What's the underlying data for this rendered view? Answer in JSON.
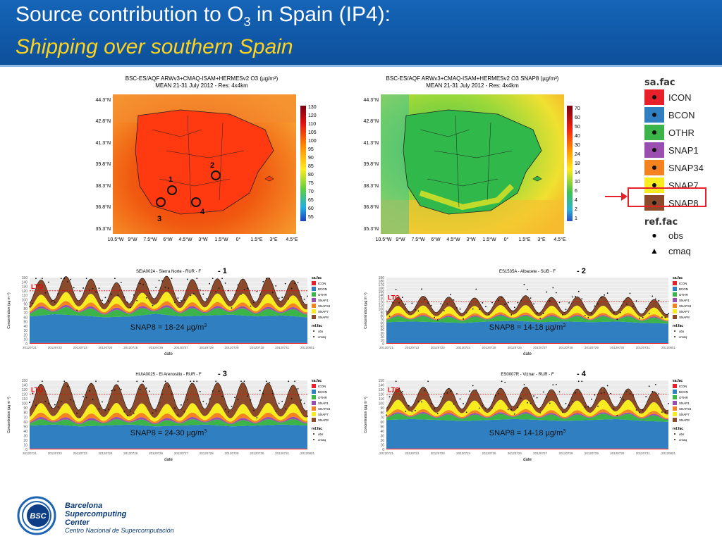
{
  "header": {
    "title_main": "Source contribution to O",
    "title_sub": "3",
    "title_tail": " in Spain (IP4):",
    "subtitle": "Shipping over southern Spain"
  },
  "map_left": {
    "title_line1": "BSC-ES/AQF ARWv3+CMAQ-ISAM+HERMESv2 O3 (µg/m³)",
    "title_line2": "MEAN 21-31 July 2012 - Res: 4x4km",
    "lat_labels": [
      "44.3°N",
      "42.8°N",
      "41.3°N",
      "39.8°N",
      "38.3°N",
      "36.8°N",
      "35.3°N"
    ],
    "lon_labels": [
      "10.5°W",
      "9°W",
      "7.5°W",
      "6°W",
      "4.5°W",
      "3°W",
      "1.5°W",
      "0°",
      "1.5°E",
      "3°E",
      "4.5°E"
    ],
    "scale": [
      "130",
      "120",
      "110",
      "105",
      "100",
      "95",
      "90",
      "85",
      "80",
      "75",
      "70",
      "65",
      "60",
      "55"
    ],
    "site_numbers": [
      "1",
      "2",
      "3",
      "4"
    ]
  },
  "map_right": {
    "title_line1": "BSC-ES/AQF ARWv3+CMAQ-ISAM+HERMESv2 O3 SNAP8 (µg/m³)",
    "title_line2": "MEAN 21-31 July 2012 - Res: 4x4km",
    "lat_labels": [
      "44.3°N",
      "42.8°N",
      "41.3°N",
      "39.8°N",
      "38.3°N",
      "36.8°N",
      "35.3°N"
    ],
    "lon_labels": [
      "10.5°W",
      "9°W",
      "7.5°W",
      "6°W",
      "4.5°W",
      "3°W",
      "1.5°W",
      "0°",
      "1.5°E",
      "3°E",
      "4.5°E"
    ],
    "scale": [
      "70",
      "60",
      "50",
      "40",
      "30",
      "24",
      "18",
      "14",
      "10",
      "6",
      "4",
      "2",
      "1"
    ]
  },
  "legend": {
    "title": "sa.fac",
    "items": [
      {
        "label": "ICON",
        "color": "#e8202a"
      },
      {
        "label": "BCON",
        "color": "#2f7fc1"
      },
      {
        "label": "OTHR",
        "color": "#3bb54a"
      },
      {
        "label": "SNAP1",
        "color": "#9a4fb0"
      },
      {
        "label": "SNAP34",
        "color": "#f58220"
      },
      {
        "label": "SNAP7",
        "color": "#f7ec1f"
      },
      {
        "label": "SNAP8",
        "color": "#8b4a2b"
      }
    ],
    "ref_title": "ref.fac",
    "ref_items": [
      {
        "label": "obs",
        "marker": "●"
      },
      {
        "label": "cmaq",
        "marker": "▲"
      }
    ]
  },
  "panels": [
    {
      "title": "SEIA0024 - Sierra Norte - RUR - F",
      "tag": "- 1",
      "annotation": "SNAP8 = 18-24 µg/m",
      "lto": "LTO",
      "ymax": 150,
      "lto_value": 120
    },
    {
      "title": "ES1535A - Albacete - SUB - F",
      "tag": "- 2",
      "annotation": "SNAP8 = 14-18 µg/m",
      "lto": "LTO",
      "ymax": 190,
      "lto_value": 120
    },
    {
      "title": "HUIA0025 - El Arenosillo - RUR - F",
      "tag": "- 3",
      "annotation": "SNAP8 = 24-30 µg/m",
      "lto": "LTO",
      "ymax": 150,
      "lto_value": 120
    },
    {
      "title": "ES0007R - Viznar - RUR - F",
      "tag": "- 4",
      "annotation": "SNAP8 = 14-18 µg/m",
      "lto": "LTO",
      "ymax": 150,
      "lto_value": 120
    }
  ],
  "panel_common": {
    "ylabel": "Concentration (µg m⁻³)",
    "xlabel": "date",
    "dates": [
      "20120721",
      "20120722",
      "20120723",
      "20120724",
      "20120725",
      "20120726",
      "20120727",
      "20120728",
      "20120729",
      "20120730",
      "20120731",
      "20120801"
    ],
    "legend_title": "sa.fac",
    "legend_items": [
      "ICON",
      "BCON",
      "OTHR",
      "SNAP1",
      "SNAP34",
      "SNAP7",
      "SNAP8"
    ],
    "ref_title": "ref.fac",
    "ref_items": [
      "obs",
      "cmaq"
    ]
  },
  "chart_data": [
    {
      "type": "area",
      "title": "SEIA0024 - Sierra Norte - RUR - F",
      "xlabel": "date",
      "ylabel": "Concentration (µg m⁻³)",
      "x": [
        "20120721",
        "20120722",
        "20120723",
        "20120724",
        "20120725",
        "20120726",
        "20120727",
        "20120728",
        "20120729",
        "20120730",
        "20120731",
        "20120801"
      ],
      "ylim": [
        0,
        150
      ],
      "series": [
        {
          "name": "ICON",
          "values": [
            2,
            2,
            2,
            2,
            2,
            2,
            2,
            2,
            2,
            2,
            2,
            2
          ]
        },
        {
          "name": "BCON",
          "values": [
            60,
            65,
            62,
            58,
            60,
            66,
            60,
            62,
            64,
            60,
            62,
            58
          ]
        },
        {
          "name": "OTHR",
          "values": [
            10,
            10,
            12,
            10,
            10,
            10,
            12,
            10,
            10,
            10,
            10,
            10
          ]
        },
        {
          "name": "SNAP1",
          "values": [
            3,
            3,
            3,
            3,
            3,
            3,
            3,
            3,
            3,
            3,
            3,
            3
          ]
        },
        {
          "name": "SNAP34",
          "values": [
            5,
            6,
            5,
            6,
            5,
            6,
            5,
            6,
            5,
            6,
            5,
            6
          ]
        },
        {
          "name": "SNAP7",
          "values": [
            10,
            12,
            14,
            10,
            12,
            15,
            11,
            12,
            12,
            13,
            12,
            10
          ]
        },
        {
          "name": "SNAP8",
          "values": [
            20,
            22,
            22,
            20,
            18,
            24,
            20,
            22,
            20,
            22,
            24,
            18
          ]
        }
      ]
    },
    {
      "type": "area",
      "title": "ES1535A - Albacete - SUB - F",
      "xlabel": "date",
      "ylabel": "Concentration (µg m⁻³)",
      "x": [
        "20120721",
        "20120722",
        "20120723",
        "20120724",
        "20120725",
        "20120726",
        "20120727",
        "20120728",
        "20120729",
        "20120730",
        "20120731",
        "20120801"
      ],
      "ylim": [
        0,
        190
      ],
      "series": [
        {
          "name": "ICON",
          "values": [
            2,
            2,
            2,
            2,
            2,
            2,
            2,
            2,
            2,
            2,
            2,
            2
          ]
        },
        {
          "name": "BCON",
          "values": [
            60,
            62,
            60,
            58,
            62,
            64,
            60,
            62,
            60,
            62,
            58,
            56
          ]
        },
        {
          "name": "OTHR",
          "values": [
            10,
            10,
            10,
            10,
            10,
            10,
            10,
            10,
            10,
            10,
            10,
            10
          ]
        },
        {
          "name": "SNAP1",
          "values": [
            2,
            2,
            2,
            2,
            2,
            2,
            2,
            2,
            2,
            2,
            2,
            2
          ]
        },
        {
          "name": "SNAP34",
          "values": [
            4,
            4,
            4,
            4,
            4,
            4,
            4,
            4,
            4,
            4,
            4,
            4
          ]
        },
        {
          "name": "SNAP7",
          "values": [
            12,
            14,
            12,
            14,
            12,
            14,
            12,
            14,
            12,
            14,
            12,
            12
          ]
        },
        {
          "name": "SNAP8",
          "values": [
            14,
            16,
            18,
            15,
            14,
            18,
            16,
            14,
            18,
            16,
            14,
            15
          ]
        }
      ]
    },
    {
      "type": "area",
      "title": "HUIA0025 - El Arenosillo - RUR - F",
      "xlabel": "date",
      "ylabel": "Concentration (µg m⁻³)",
      "x": [
        "20120721",
        "20120722",
        "20120723",
        "20120724",
        "20120725",
        "20120726",
        "20120727",
        "20120728",
        "20120729",
        "20120730",
        "20120731",
        "20120801"
      ],
      "ylim": [
        0,
        150
      ],
      "series": [
        {
          "name": "ICON",
          "values": [
            2,
            2,
            2,
            2,
            2,
            2,
            2,
            2,
            2,
            2,
            2,
            2
          ]
        },
        {
          "name": "BCON",
          "values": [
            50,
            52,
            48,
            50,
            52,
            48,
            50,
            52,
            48,
            50,
            52,
            50
          ]
        },
        {
          "name": "OTHR",
          "values": [
            8,
            8,
            8,
            8,
            8,
            8,
            8,
            8,
            8,
            8,
            8,
            8
          ]
        },
        {
          "name": "SNAP1",
          "values": [
            3,
            3,
            3,
            3,
            3,
            3,
            3,
            3,
            3,
            3,
            3,
            3
          ]
        },
        {
          "name": "SNAP34",
          "values": [
            6,
            6,
            6,
            6,
            6,
            6,
            6,
            6,
            6,
            6,
            6,
            6
          ]
        },
        {
          "name": "SNAP7",
          "values": [
            12,
            14,
            12,
            14,
            12,
            14,
            12,
            14,
            12,
            14,
            12,
            12
          ]
        },
        {
          "name": "SNAP8",
          "values": [
            24,
            28,
            30,
            26,
            24,
            30,
            28,
            26,
            30,
            28,
            26,
            24
          ]
        }
      ]
    },
    {
      "type": "area",
      "title": "ES0007R - Viznar - RUR - F",
      "xlabel": "date",
      "ylabel": "Concentration (µg m⁻³)",
      "x": [
        "20120721",
        "20120722",
        "20120723",
        "20120724",
        "20120725",
        "20120726",
        "20120727",
        "20120728",
        "20120729",
        "20120730",
        "20120731",
        "20120801"
      ],
      "ylim": [
        0,
        150
      ],
      "series": [
        {
          "name": "ICON",
          "values": [
            2,
            2,
            2,
            2,
            2,
            2,
            2,
            2,
            2,
            2,
            2,
            2
          ]
        },
        {
          "name": "BCON",
          "values": [
            62,
            64,
            62,
            60,
            62,
            64,
            62,
            60,
            62,
            64,
            60,
            58
          ]
        },
        {
          "name": "OTHR",
          "values": [
            8,
            8,
            8,
            8,
            8,
            8,
            8,
            8,
            8,
            8,
            8,
            8
          ]
        },
        {
          "name": "SNAP1",
          "values": [
            2,
            2,
            2,
            2,
            2,
            2,
            2,
            2,
            2,
            2,
            2,
            2
          ]
        },
        {
          "name": "SNAP34",
          "values": [
            4,
            4,
            4,
            4,
            4,
            4,
            4,
            4,
            4,
            4,
            4,
            4
          ]
        },
        {
          "name": "SNAP7",
          "values": [
            12,
            14,
            12,
            14,
            12,
            14,
            12,
            14,
            12,
            14,
            12,
            12
          ]
        },
        {
          "name": "SNAP8",
          "values": [
            14,
            16,
            18,
            15,
            14,
            18,
            16,
            14,
            18,
            16,
            14,
            15
          ]
        }
      ]
    }
  ],
  "logo": {
    "abbr": "BSC",
    "line1": "Barcelona",
    "line2": "Supercomputing",
    "line3": "Center",
    "tagline": "Centro Nacional de Supercomputación"
  }
}
